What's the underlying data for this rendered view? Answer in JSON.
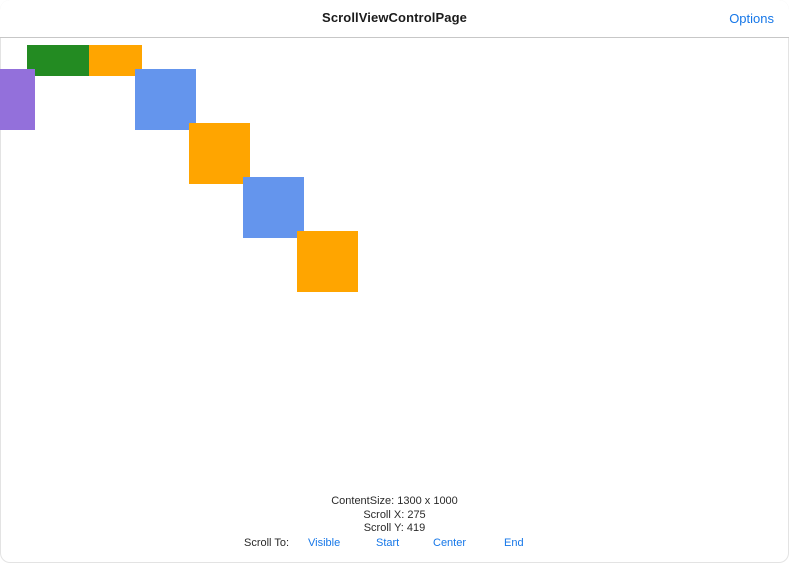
{
  "header": {
    "title": "ScrollViewControlPage",
    "options_label": "Options"
  },
  "footer": {
    "content_size": "ContentSize: 1300 x 1000",
    "scroll_x": "Scroll X: 275",
    "scroll_y": "Scroll Y: 419",
    "scroll_to_label": "Scroll To:",
    "buttons": {
      "visible": "Visible",
      "start": "Start",
      "center": "Center",
      "end": "End"
    }
  },
  "colors": {
    "accent": "#1677e8",
    "green": "#238b22",
    "orange": "#ffa500",
    "blue": "#6495ed",
    "purple": "#9370db"
  }
}
